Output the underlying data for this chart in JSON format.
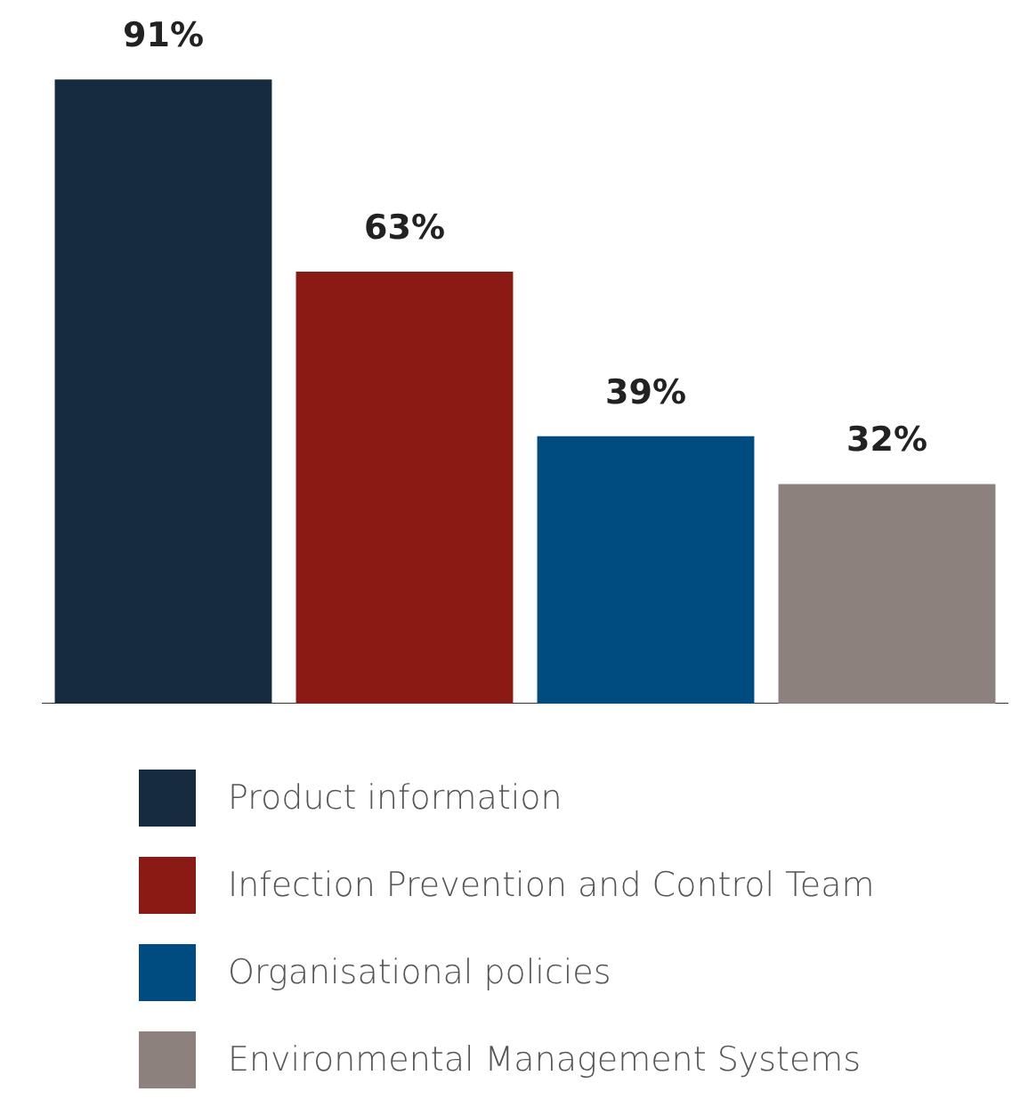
{
  "chart_data": {
    "type": "bar",
    "categories": [
      null
    ],
    "series": [
      {
        "name": "Product information",
        "color": "#162a40",
        "values": [
          91
        ],
        "value_labels": [
          "91%"
        ]
      },
      {
        "name": "Infection Prevention and Control Team",
        "color": "#8b1a14",
        "values": [
          63
        ],
        "value_labels": [
          "63%"
        ]
      },
      {
        "name": "Organisational policies",
        "color": "#004b80",
        "values": [
          39
        ],
        "value_labels": [
          "39%"
        ]
      },
      {
        "name": "Environmental Management Systems",
        "color": "#8c817d",
        "values": [
          32
        ],
        "value_labels": [
          "32%"
        ]
      }
    ],
    "legend": "bottom",
    "grid": false
  }
}
